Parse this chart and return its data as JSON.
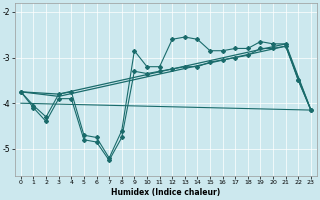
{
  "xlabel": "Humidex (Indice chaleur)",
  "background_color": "#cce8ee",
  "line_color": "#1a6b6b",
  "xlim": [
    -0.5,
    23.5
  ],
  "ylim": [
    -5.6,
    -1.8
  ],
  "yticks": [
    -5,
    -4,
    -3,
    -2
  ],
  "xticks": [
    0,
    1,
    2,
    3,
    4,
    5,
    6,
    7,
    8,
    9,
    10,
    11,
    12,
    13,
    14,
    15,
    16,
    17,
    18,
    19,
    20,
    21,
    22,
    23
  ],
  "line1_x": [
    0,
    1,
    2,
    3,
    4,
    5,
    6,
    7,
    8,
    9,
    10,
    11,
    12,
    13,
    14,
    15,
    16,
    17,
    18,
    19,
    20,
    21,
    22,
    23
  ],
  "line1_y": [
    -3.75,
    -4.05,
    -4.3,
    -3.8,
    -3.75,
    -4.7,
    -4.75,
    -5.2,
    -4.6,
    -2.85,
    -3.2,
    -3.2,
    -2.6,
    -2.55,
    -2.6,
    -2.85,
    -2.85,
    -2.8,
    -2.8,
    -2.65,
    -2.7,
    -2.7,
    -3.5,
    -4.15
  ],
  "line2_x": [
    0,
    1,
    2,
    3,
    4,
    5,
    6,
    7,
    8,
    9,
    10,
    11,
    12,
    13,
    14,
    15,
    16,
    17,
    18,
    19,
    20,
    21,
    22,
    23
  ],
  "line2_y": [
    -3.75,
    -4.1,
    -4.4,
    -3.9,
    -3.9,
    -4.8,
    -4.85,
    -5.25,
    -4.75,
    -3.3,
    -3.35,
    -3.3,
    -3.25,
    -3.2,
    -3.2,
    -3.1,
    -3.05,
    -3.0,
    -2.95,
    -2.8,
    -2.8,
    -2.75,
    -3.5,
    -4.15
  ],
  "regline1_x": [
    0,
    3,
    21,
    23
  ],
  "regline1_y": [
    -3.75,
    -3.8,
    -2.7,
    -4.15
  ],
  "regline2_x": [
    0,
    3,
    21,
    23
  ],
  "regline2_y": [
    -3.75,
    -3.85,
    -2.75,
    -4.15
  ],
  "hline_x": [
    0,
    23
  ],
  "hline_y": [
    -4.0,
    -4.15
  ]
}
